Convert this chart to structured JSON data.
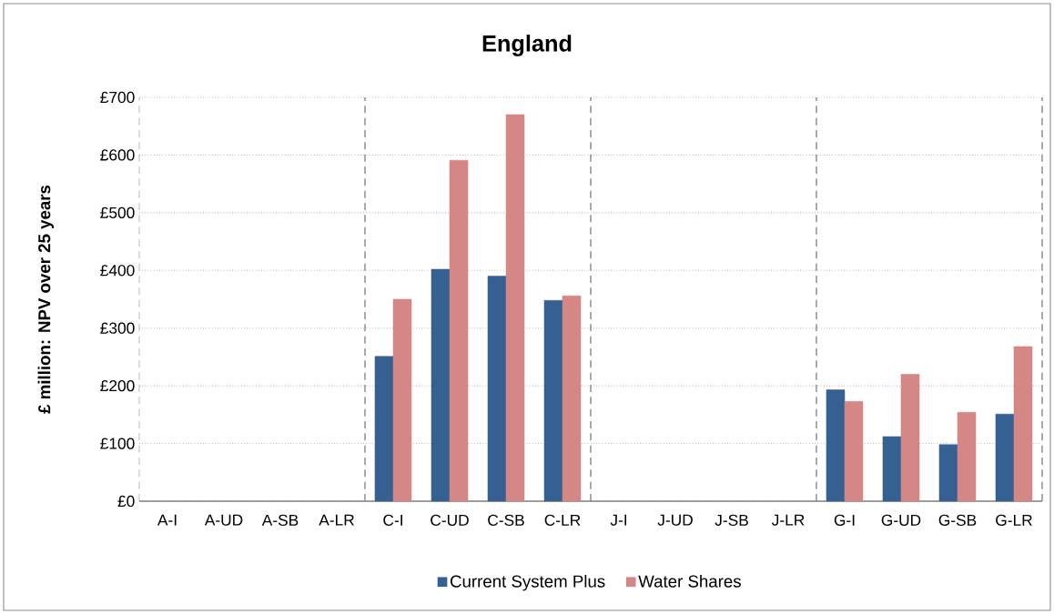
{
  "chart_data": {
    "type": "bar",
    "title": "England",
    "ylabel": "£ million: NPV over 25 years",
    "categories": [
      "A-I",
      "A-UD",
      "A-SB",
      "A-LR",
      "C-I",
      "C-UD",
      "C-SB",
      "C-LR",
      "J-I",
      "J-UD",
      "J-SB",
      "J-LR",
      "G-I",
      "G-UD",
      "G-SB",
      "G-LR"
    ],
    "series": [
      {
        "name": "Current System Plus",
        "color": "#376092",
        "values": [
          null,
          null,
          null,
          null,
          251,
          402,
          390,
          348,
          null,
          null,
          null,
          null,
          193,
          112,
          98,
          151
        ]
      },
      {
        "name": "Water Shares",
        "color": "#d48784",
        "values": [
          null,
          null,
          null,
          null,
          350,
          591,
          670,
          356,
          null,
          null,
          null,
          null,
          173,
          220,
          154,
          268
        ]
      }
    ],
    "ylim": [
      0,
      700
    ],
    "yticks": [
      {
        "value": 0,
        "label": "£0"
      },
      {
        "value": 100,
        "label": "£100"
      },
      {
        "value": 200,
        "label": "£200"
      },
      {
        "value": 300,
        "label": "£300"
      },
      {
        "value": 400,
        "label": "£400"
      },
      {
        "value": 500,
        "label": "£500"
      },
      {
        "value": 600,
        "label": "£600"
      },
      {
        "value": 700,
        "label": "£700"
      }
    ],
    "grid": "y",
    "legend": "bottom"
  }
}
